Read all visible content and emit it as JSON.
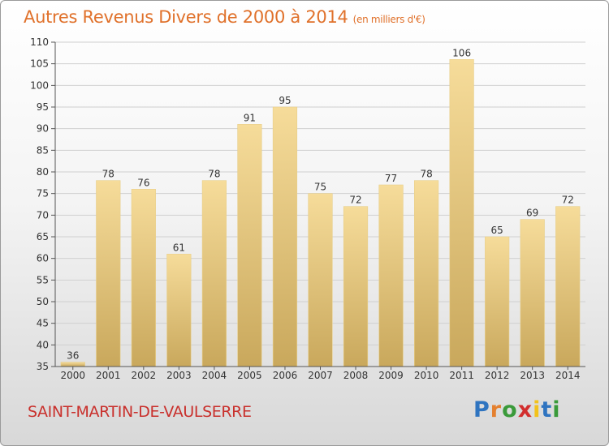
{
  "title": "Autres Revenus Divers de 2000 à 2014",
  "subtitle": "(en milliers d'€)",
  "commune": "SAINT-MARTIN-DE-VAULSERRE",
  "logo": {
    "letters": [
      "P",
      "r",
      "o",
      "x",
      "i",
      "t",
      "i"
    ],
    "colors": [
      "#2f74c0",
      "#e4802f",
      "#3a9a3a",
      "#d22e2e",
      "#f2c21b",
      "#2f74c0",
      "#3a9a3a"
    ]
  },
  "colors": {
    "bar_top": "#f6dc9a",
    "bar_bottom": "#c9a85c",
    "grid": "#d0d0d0"
  },
  "chart_data": {
    "type": "bar",
    "title": "Autres Revenus Divers de 2000 à 2014",
    "subtitle": "(en milliers d'€)",
    "categories": [
      "2000",
      "2001",
      "2002",
      "2003",
      "2004",
      "2005",
      "2006",
      "2007",
      "2008",
      "2009",
      "2010",
      "2011",
      "2012",
      "2013",
      "2014"
    ],
    "values": [
      36,
      78,
      76,
      61,
      78,
      91,
      95,
      75,
      72,
      77,
      78,
      106,
      65,
      69,
      72
    ],
    "ylim": [
      35,
      110
    ],
    "yticks": [
      35,
      40,
      45,
      50,
      55,
      60,
      65,
      70,
      75,
      80,
      85,
      90,
      95,
      100,
      105,
      110
    ],
    "grid": true
  }
}
